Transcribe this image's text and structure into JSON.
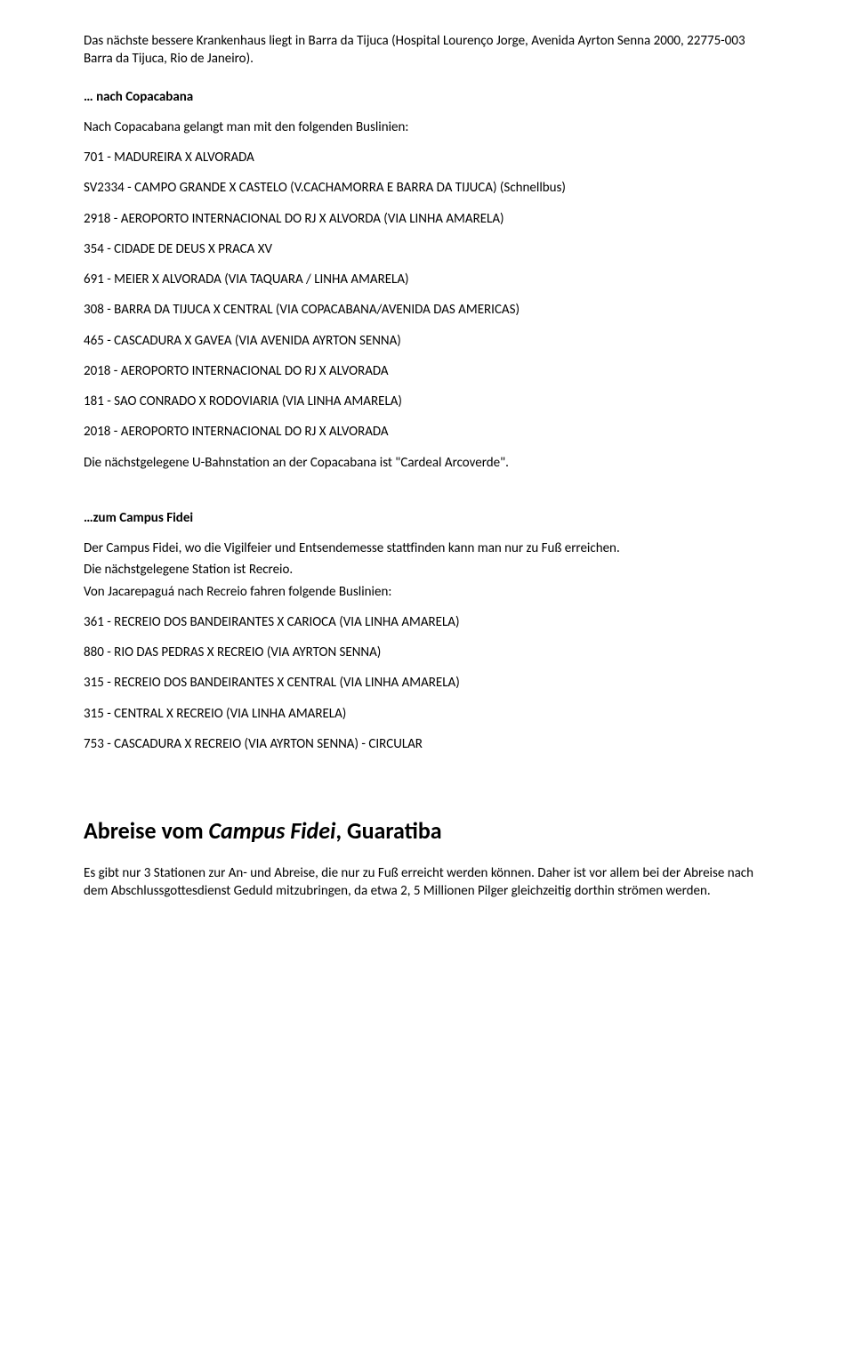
{
  "intro": "Das nächste bessere Krankenhaus liegt in Barra da Tijuca (Hospital Lourenço Jorge, Avenida Ayrton Senna 2000, 22775-003 Barra da Tijuca, Rio de Janeiro).",
  "copacabana": {
    "head": "… nach Copacabana",
    "lead": "Nach Copacabana gelangt man mit den folgenden Buslinien:",
    "lines": [
      "701 - MADUREIRA X ALVORADA",
      "SV2334 - CAMPO GRANDE X CASTELO (V.CACHAMORRA E BARRA DA TIJUCA) (Schnellbus)",
      "2918 - AEROPORTO INTERNACIONAL DO RJ X ALVORDA (VIA LINHA AMARELA)",
      "354 - CIDADE DE DEUS X PRACA XV",
      "691 - MEIER X ALVORADA (VIA TAQUARA / LINHA AMARELA)",
      "308 - BARRA DA TIJUCA X CENTRAL (VIA COPACABANA/AVENIDA DAS AMERICAS)",
      "465 - CASCADURA X GAVEA (VIA AVENIDA AYRTON SENNA)",
      "2018 - AEROPORTO INTERNACIONAL DO RJ X ALVORADA",
      "181 - SAO CONRADO X RODOVIARIA (VIA LINHA AMARELA)",
      "2018 - AEROPORTO INTERNACIONAL DO RJ X ALVORADA"
    ],
    "station": "Die nächstgelegene U-Bahnstation an der Copacabana ist \"Cardeal Arcoverde\"."
  },
  "fidei": {
    "head": "…zum Campus Fidei",
    "lead_a": "Der Campus Fidei, wo die Vigilfeier und Entsendemesse stattfinden kann man nur zu Fuß erreichen.",
    "lead_b": "Die nächstgelegene Station ist Recreio.",
    "lead_c": "Von Jacarepaguá nach Recreio fahren folgende Buslinien:",
    "lines": [
      "361 - RECREIO DOS BANDEIRANTES X CARIOCA (VIA LINHA AMARELA)",
      "880 - RIO DAS PEDRAS X RECREIO (VIA AYRTON SENNA)",
      "315 - RECREIO DOS BANDEIRANTES X CENTRAL (VIA LINHA AMARELA)",
      "315 - CENTRAL X RECREIO (VIA LINHA AMARELA)",
      "753 - CASCADURA X RECREIO (VIA AYRTON SENNA) - CIRCULAR"
    ]
  },
  "abreise": {
    "title_plain_a": "Abreise vom ",
    "title_italic": "Campus Fidei",
    "title_plain_b": ", Guaratiba",
    "body": "Es gibt nur 3 Stationen zur An- und Abreise, die nur zu Fuß erreicht werden können. Daher ist vor allem bei der Abreise nach dem Abschlussgottesdienst Geduld mitzubringen, da etwa 2, 5 Millionen Pilger gleichzeitig dorthin strömen werden."
  }
}
